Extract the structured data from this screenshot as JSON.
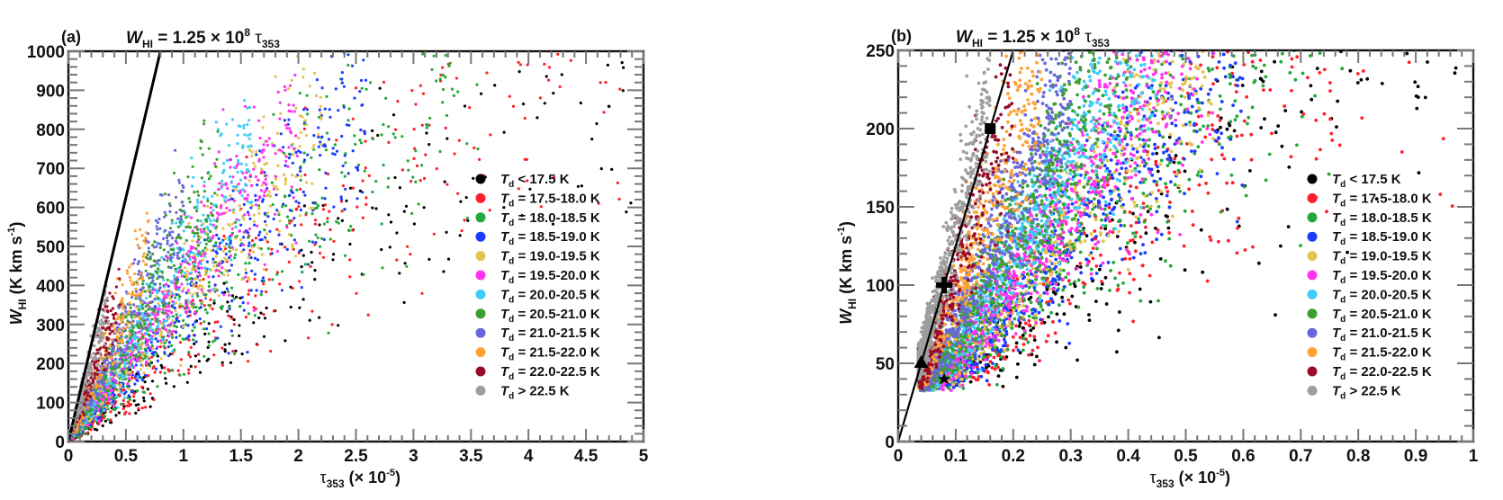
{
  "chart_data": [
    {
      "type": "scatter",
      "panel_label": "(a)",
      "title": {
        "var": "W",
        "sub": "HI",
        "rest": " = 1.25 × 10",
        "sup": "8",
        "tau": " τ",
        "tau_sub": "353"
      },
      "xlabel": {
        "main": "τ",
        "sub": "353",
        "rest": " (× 10",
        "sup": "-5",
        "close": ")"
      },
      "ylabel": {
        "var": "W",
        "sub": "HI",
        "rest": " (K km s",
        "sup": "-1",
        "close": ")"
      },
      "xlim": [
        0,
        5
      ],
      "ylim": [
        0,
        1000
      ],
      "xticks": [
        0,
        0.5,
        1,
        1.5,
        2,
        2.5,
        3,
        3.5,
        4,
        4.5,
        5
      ],
      "xtick_labels": [
        "0",
        "0.5",
        "1",
        "1.5",
        "2",
        "2.5",
        "3",
        "3.5",
        "4",
        "4.5",
        "5"
      ],
      "yticks": [
        0,
        100,
        200,
        300,
        400,
        500,
        600,
        700,
        800,
        900,
        1000
      ],
      "ytick_labels": [
        "0",
        "100",
        "200",
        "300",
        "400",
        "500",
        "600",
        "700",
        "800",
        "900",
        "1000"
      ],
      "grid": false,
      "legend_placement": "center-right",
      "model_line": {
        "label": "W_HI = 1.25e8 tau_353",
        "slope_per_1e-5": 1250,
        "x": [
          0,
          0.8
        ],
        "y": [
          0,
          1000
        ]
      },
      "markers": [],
      "series_distribution": [
        {
          "name": "T_d < 17.5 K",
          "ratio_center": 200,
          "ratio_spread": 60,
          "x_max": 4.9,
          "count": 220
        },
        {
          "name": "T_d = 17.5-18.0 K",
          "ratio_center": 260,
          "ratio_spread": 70,
          "x_max": 4.9,
          "count": 420
        },
        {
          "name": "T_d = 18.0-18.5 K",
          "ratio_center": 310,
          "ratio_spread": 70,
          "x_max": 3.6,
          "count": 480
        },
        {
          "name": "T_d = 18.5-19.0 K",
          "ratio_center": 340,
          "ratio_spread": 60,
          "x_max": 2.6,
          "count": 520
        },
        {
          "name": "T_d = 19.0-19.5 K",
          "ratio_center": 380,
          "ratio_spread": 60,
          "x_max": 2.2,
          "count": 480
        },
        {
          "name": "T_d = 19.5-20.0 K",
          "ratio_center": 420,
          "ratio_spread": 70,
          "x_max": 2.0,
          "count": 560
        },
        {
          "name": "T_d = 20.0-20.5 K",
          "ratio_center": 470,
          "ratio_spread": 80,
          "x_max": 1.6,
          "count": 540
        },
        {
          "name": "T_d = 20.5-21.0 K",
          "ratio_center": 520,
          "ratio_spread": 90,
          "x_max": 1.3,
          "count": 480
        },
        {
          "name": "T_d = 21.0-21.5 K",
          "ratio_center": 600,
          "ratio_spread": 100,
          "x_max": 1.0,
          "count": 420
        },
        {
          "name": "T_d = 21.5-22.0 K",
          "ratio_center": 700,
          "ratio_spread": 120,
          "x_max": 0.7,
          "count": 320
        },
        {
          "name": "T_d = 22.0-22.5 K",
          "ratio_center": 850,
          "ratio_spread": 130,
          "x_max": 0.45,
          "count": 240
        },
        {
          "name": "T_d > 22.5 K",
          "ratio_center": 1050,
          "ratio_spread": 150,
          "x_max": 0.35,
          "count": 240
        }
      ]
    },
    {
      "type": "scatter",
      "panel_label": "(b)",
      "title": {
        "var": "W",
        "sub": "HI",
        "rest": " = 1.25 × 10",
        "sup": "8",
        "tau": " τ",
        "tau_sub": "353"
      },
      "xlabel": {
        "main": "τ",
        "sub": "353",
        "rest": " (× 10",
        "sup": "-5",
        "close": ")"
      },
      "ylabel": {
        "var": "W",
        "sub": "HI",
        "rest": " (K km s",
        "sup": "-1",
        "close": ")"
      },
      "xlim": [
        0,
        1
      ],
      "ylim": [
        0,
        250
      ],
      "xticks": [
        0,
        0.1,
        0.2,
        0.3,
        0.4,
        0.5,
        0.6,
        0.7,
        0.8,
        0.9,
        1
      ],
      "xtick_labels": [
        "0",
        "0.1",
        "0.2",
        "0.3",
        "0.4",
        "0.5",
        "0.6",
        "0.7",
        "0.8",
        "0.9",
        "1"
      ],
      "yticks": [
        0,
        50,
        100,
        150,
        200,
        250
      ],
      "ytick_labels": [
        "0",
        "50",
        "100",
        "150",
        "200",
        "250"
      ],
      "grid": false,
      "legend_placement": "center-right",
      "model_line": {
        "label": "W_HI = 1.25e8 tau_353",
        "slope_per_1e-5": 1250,
        "x": [
          0,
          0.2
        ],
        "y": [
          0,
          250
        ]
      },
      "markers": [
        {
          "shape": "square",
          "x": 0.16,
          "y": 200
        },
        {
          "shape": "plus",
          "x": 0.08,
          "y": 100
        },
        {
          "shape": "triangle",
          "x": 0.04,
          "y": 50
        },
        {
          "shape": "star",
          "x": 0.08,
          "y": 40
        }
      ],
      "series_distribution": [
        {
          "name": "T_d < 17.5 K",
          "ratio_center": 320,
          "ratio_spread": 70,
          "x_max": 1.0,
          "count": 300
        },
        {
          "name": "T_d = 17.5-18.0 K",
          "ratio_center": 360,
          "ratio_spread": 80,
          "x_max": 1.0,
          "count": 500
        },
        {
          "name": "T_d = 18.0-18.5 K",
          "ratio_center": 420,
          "ratio_spread": 80,
          "x_max": 0.8,
          "count": 700
        },
        {
          "name": "T_d = 18.5-19.0 K",
          "ratio_center": 440,
          "ratio_spread": 70,
          "x_max": 0.6,
          "count": 800
        },
        {
          "name": "T_d = 19.0-19.5 K",
          "ratio_center": 480,
          "ratio_spread": 70,
          "x_max": 0.55,
          "count": 700
        },
        {
          "name": "T_d = 19.5-20.0 K",
          "ratio_center": 520,
          "ratio_spread": 80,
          "x_max": 0.55,
          "count": 1100
        },
        {
          "name": "T_d = 20.0-20.5 K",
          "ratio_center": 600,
          "ratio_spread": 90,
          "x_max": 0.45,
          "count": 1100
        },
        {
          "name": "T_d = 20.5-21.0 K",
          "ratio_center": 650,
          "ratio_spread": 110,
          "x_max": 0.4,
          "count": 1000
        },
        {
          "name": "T_d = 21.0-21.5 K",
          "ratio_center": 780,
          "ratio_spread": 120,
          "x_max": 0.3,
          "count": 900
        },
        {
          "name": "T_d = 21.5-22.0 K",
          "ratio_center": 950,
          "ratio_spread": 150,
          "x_max": 0.25,
          "count": 700
        },
        {
          "name": "T_d = 22.0-22.5 K",
          "ratio_center": 1100,
          "ratio_spread": 160,
          "x_max": 0.2,
          "count": 500
        },
        {
          "name": "T_d > 22.5 K",
          "ratio_center": 1350,
          "ratio_spread": 160,
          "x_max": 0.16,
          "count": 800
        }
      ]
    }
  ],
  "legend": {
    "entries": [
      {
        "sym": "T",
        "sub": "d",
        "text": " < 17.5 K",
        "color": "#000000"
      },
      {
        "sym": "T",
        "sub": "d",
        "text": " = 17.5-18.0 K",
        "color": "#ff1f2b"
      },
      {
        "sym": "T",
        "sub": "d",
        "text": " = 18.0-18.5 K",
        "color": "#22a839"
      },
      {
        "sym": "T",
        "sub": "d",
        "text": " = 18.5-19.0 K",
        "color": "#1c3dff"
      },
      {
        "sym": "T",
        "sub": "d",
        "text": " = 19.0-19.5 K",
        "color": "#e2c44e"
      },
      {
        "sym": "T",
        "sub": "d",
        "text": " = 19.5-20.0 K",
        "color": "#ff33ee"
      },
      {
        "sym": "T",
        "sub": "d",
        "text": " = 20.0-20.5 K",
        "color": "#3fccf7"
      },
      {
        "sym": "T",
        "sub": "d",
        "text": " = 20.5-21.0 K",
        "color": "#3d9e33"
      },
      {
        "sym": "T",
        "sub": "d",
        "text": " = 21.0-21.5 K",
        "color": "#6a66dc"
      },
      {
        "sym": "T",
        "sub": "d",
        "text": " = 21.5-22.0 K",
        "color": "#ffa233"
      },
      {
        "sym": "T",
        "sub": "d",
        "text": " = 22.0-22.5 K",
        "color": "#980c2b"
      },
      {
        "sym": "T",
        "sub": "d",
        "text": " > 22.5 K",
        "color": "#9e9e9e"
      }
    ]
  }
}
